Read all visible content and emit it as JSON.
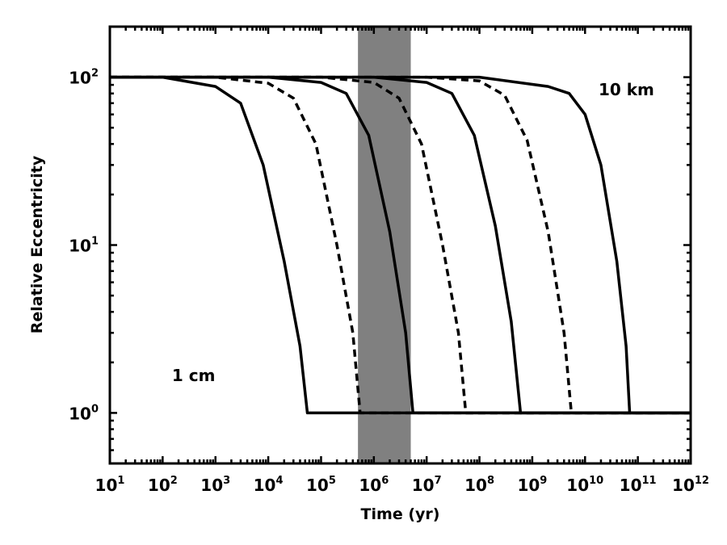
{
  "chart_data": {
    "type": "line",
    "title": "",
    "xlabel": "Time (yr)",
    "ylabel": "Relative Eccentricity",
    "xscale": "log",
    "yscale": "log",
    "xlim": [
      10,
      1000000000000.0
    ],
    "ylim": [
      0.5,
      200
    ],
    "grid": false,
    "legend": "none",
    "x_ticks": [
      {
        "base": "10",
        "exp": "1"
      },
      {
        "base": "10",
        "exp": "2"
      },
      {
        "base": "10",
        "exp": "3"
      },
      {
        "base": "10",
        "exp": "4"
      },
      {
        "base": "10",
        "exp": "5"
      },
      {
        "base": "10",
        "exp": "6"
      },
      {
        "base": "10",
        "exp": "7"
      },
      {
        "base": "10",
        "exp": "8"
      },
      {
        "base": "10",
        "exp": "9"
      },
      {
        "base": "10",
        "exp": "10"
      },
      {
        "base": "10",
        "exp": "11"
      },
      {
        "base": "10",
        "exp": "12"
      }
    ],
    "y_ticks": [
      {
        "base": "10",
        "exp": "0"
      },
      {
        "base": "10",
        "exp": "1"
      },
      {
        "base": "10",
        "exp": "2"
      }
    ],
    "shaded_region": {
      "x": [
        500000.0,
        5000000.0
      ],
      "color": "#808080"
    },
    "series": [
      {
        "style": "solid",
        "points": [
          [
            10,
            100
          ],
          [
            100,
            100
          ],
          [
            1000,
            88
          ],
          [
            3000,
            70
          ],
          [
            8000,
            30
          ],
          [
            20000,
            8
          ],
          [
            40000,
            2.5
          ],
          [
            55000,
            1
          ],
          [
            1000000000000.0,
            1
          ]
        ]
      },
      {
        "style": "dashed",
        "points": [
          [
            10,
            100
          ],
          [
            1000,
            100
          ],
          [
            10000,
            92
          ],
          [
            30000,
            75
          ],
          [
            80000,
            40
          ],
          [
            200000,
            10
          ],
          [
            400000,
            3
          ],
          [
            550000,
            1
          ],
          [
            1000000000000.0,
            1
          ]
        ]
      },
      {
        "style": "solid",
        "points": [
          [
            10,
            100
          ],
          [
            10000,
            100
          ],
          [
            100000,
            93
          ],
          [
            300000,
            80
          ],
          [
            800000,
            45
          ],
          [
            2000000,
            12
          ],
          [
            4000000,
            3
          ],
          [
            5500000,
            1
          ],
          [
            1000000000000.0,
            1
          ]
        ]
      },
      {
        "style": "dashed",
        "points": [
          [
            10,
            100
          ],
          [
            100000,
            100
          ],
          [
            1000000,
            93
          ],
          [
            3000000,
            75
          ],
          [
            8000000,
            40
          ],
          [
            20000000,
            10
          ],
          [
            40000000,
            3
          ],
          [
            55000000,
            1
          ],
          [
            1000000000000.0,
            1
          ]
        ]
      },
      {
        "style": "solid",
        "points": [
          [
            10,
            100
          ],
          [
            1000000,
            100
          ],
          [
            10000000,
            93
          ],
          [
            30000000,
            80
          ],
          [
            80000000,
            45
          ],
          [
            200000000,
            13
          ],
          [
            400000000,
            3.5
          ],
          [
            600000000,
            1
          ],
          [
            1000000000000.0,
            1
          ]
        ]
      },
      {
        "style": "dashed",
        "points": [
          [
            10,
            100
          ],
          [
            10000000,
            100
          ],
          [
            100000000,
            95
          ],
          [
            300000000,
            78
          ],
          [
            800000000,
            42
          ],
          [
            2000000000,
            12
          ],
          [
            4000000000,
            3
          ],
          [
            5500000000,
            1
          ],
          [
            1000000000000.0,
            1
          ]
        ]
      },
      {
        "style": "solid",
        "points": [
          [
            10,
            100
          ],
          [
            100000000,
            100
          ],
          [
            2000000000,
            88
          ],
          [
            5000000000,
            80
          ],
          [
            10000000000,
            60
          ],
          [
            20000000000,
            30
          ],
          [
            40000000000,
            8
          ],
          [
            60000000000,
            2.5
          ],
          [
            70000000000,
            1
          ],
          [
            1000000000000.0,
            1
          ]
        ]
      }
    ],
    "annotations": [
      {
        "text": "10 km",
        "x": 18000000000.0,
        "y": 78
      },
      {
        "text": "1 cm",
        "x": 150,
        "y": 1.55
      }
    ]
  }
}
